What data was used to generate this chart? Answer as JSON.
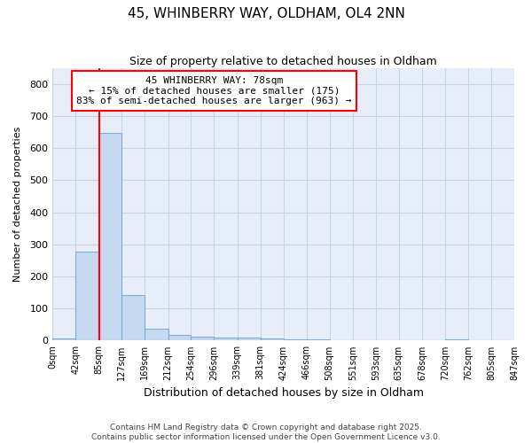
{
  "title1": "45, WHINBERRY WAY, OLDHAM, OL4 2NN",
  "title2": "Size of property relative to detached houses in Oldham",
  "xlabel": "Distribution of detached houses by size in Oldham",
  "ylabel": "Number of detached properties",
  "bar_color": "#c6d9f0",
  "bar_edge_color": "#7bafd4",
  "bin_edges": [
    0,
    42,
    85,
    127,
    169,
    212,
    254,
    296,
    339,
    381,
    424,
    466,
    508,
    551,
    593,
    635,
    678,
    720,
    762,
    805,
    847
  ],
  "bar_heights": [
    8,
    278,
    648,
    142,
    38,
    18,
    12,
    10,
    10,
    8,
    5,
    3,
    1,
    0,
    0,
    0,
    0,
    4,
    0,
    0
  ],
  "tick_labels": [
    "0sqm",
    "42sqm",
    "85sqm",
    "127sqm",
    "169sqm",
    "212sqm",
    "254sqm",
    "296sqm",
    "339sqm",
    "381sqm",
    "424sqm",
    "466sqm",
    "508sqm",
    "551sqm",
    "593sqm",
    "635sqm",
    "678sqm",
    "720sqm",
    "762sqm",
    "805sqm",
    "847sqm"
  ],
  "red_line_x": 85,
  "annotation_text": "45 WHINBERRY WAY: 78sqm\n← 15% of detached houses are smaller (175)\n83% of semi-detached houses are larger (963) →",
  "ylim": [
    0,
    850
  ],
  "yticks": [
    0,
    100,
    200,
    300,
    400,
    500,
    600,
    700,
    800
  ],
  "grid_color": "#c8d4e8",
  "background_color": "#e8eef8",
  "footer_line1": "Contains HM Land Registry data © Crown copyright and database right 2025.",
  "footer_line2": "Contains public sector information licensed under the Open Government Licence v3.0."
}
